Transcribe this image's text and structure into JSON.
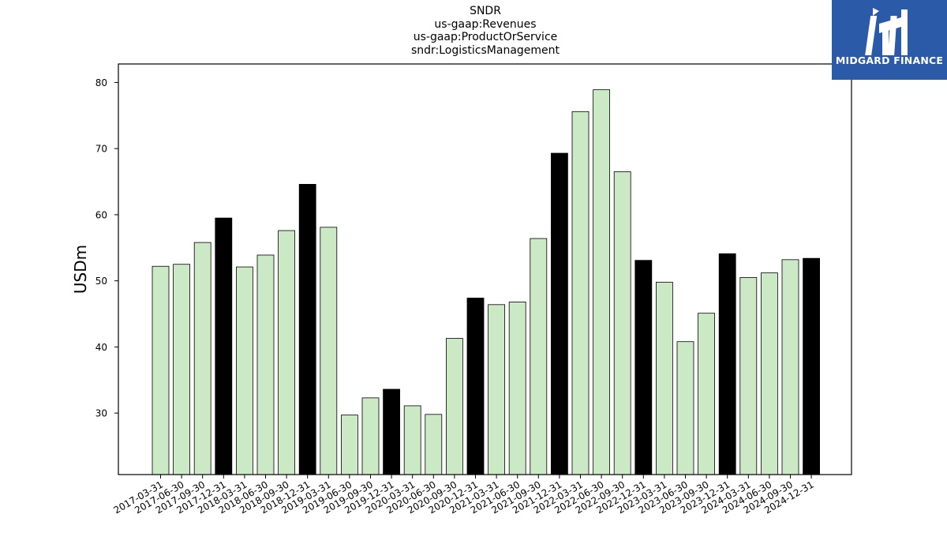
{
  "chart_data": {
    "type": "bar",
    "title_lines": [
      "SNDR",
      "us-gaap:Revenues",
      "us-gaap:ProductOrService",
      "sndr:LogisticsManagement"
    ],
    "ylabel": "USDm",
    "xlabel": "",
    "ylim": [
      20.7,
      82.8
    ],
    "yticks": [
      30,
      40,
      50,
      60,
      70,
      80
    ],
    "grid": false,
    "categories": [
      "2017-03-31",
      "2017-06-30",
      "2017-09-30",
      "2017-12-31",
      "2018-03-31",
      "2018-06-30",
      "2018-09-30",
      "2018-12-31",
      "2019-03-31",
      "2019-06-30",
      "2019-09-30",
      "2019-12-31",
      "2020-03-31",
      "2020-06-30",
      "2020-09-30",
      "2020-12-31",
      "2021-03-31",
      "2021-06-30",
      "2021-09-30",
      "2021-12-31",
      "2022-03-31",
      "2022-06-30",
      "2022-09-30",
      "2022-12-31",
      "2023-03-31",
      "2023-06-30",
      "2023-09-30",
      "2023-12-31",
      "2024-03-31",
      "2024-06-30",
      "2024-09-30",
      "2024-12-31"
    ],
    "values": [
      52.2,
      52.5,
      55.8,
      59.5,
      52.1,
      53.9,
      57.6,
      64.6,
      58.1,
      29.7,
      32.3,
      33.6,
      31.1,
      29.8,
      41.3,
      47.4,
      46.4,
      46.8,
      56.4,
      69.3,
      75.6,
      78.9,
      66.5,
      53.1,
      49.8,
      40.8,
      45.1,
      54.1,
      50.5,
      51.2,
      53.2,
      53.4
    ],
    "highlight": [
      false,
      false,
      false,
      true,
      false,
      false,
      false,
      true,
      false,
      false,
      false,
      true,
      false,
      false,
      false,
      true,
      false,
      false,
      false,
      true,
      false,
      false,
      false,
      true,
      false,
      false,
      false,
      true,
      false,
      false,
      false,
      true
    ],
    "colors": {
      "normal": "#cce9c6",
      "highlight": "#000000",
      "edge": "#000000"
    }
  },
  "logo": {
    "text": "MIDGARD FINANCE",
    "bg": "#2b5aa8"
  }
}
